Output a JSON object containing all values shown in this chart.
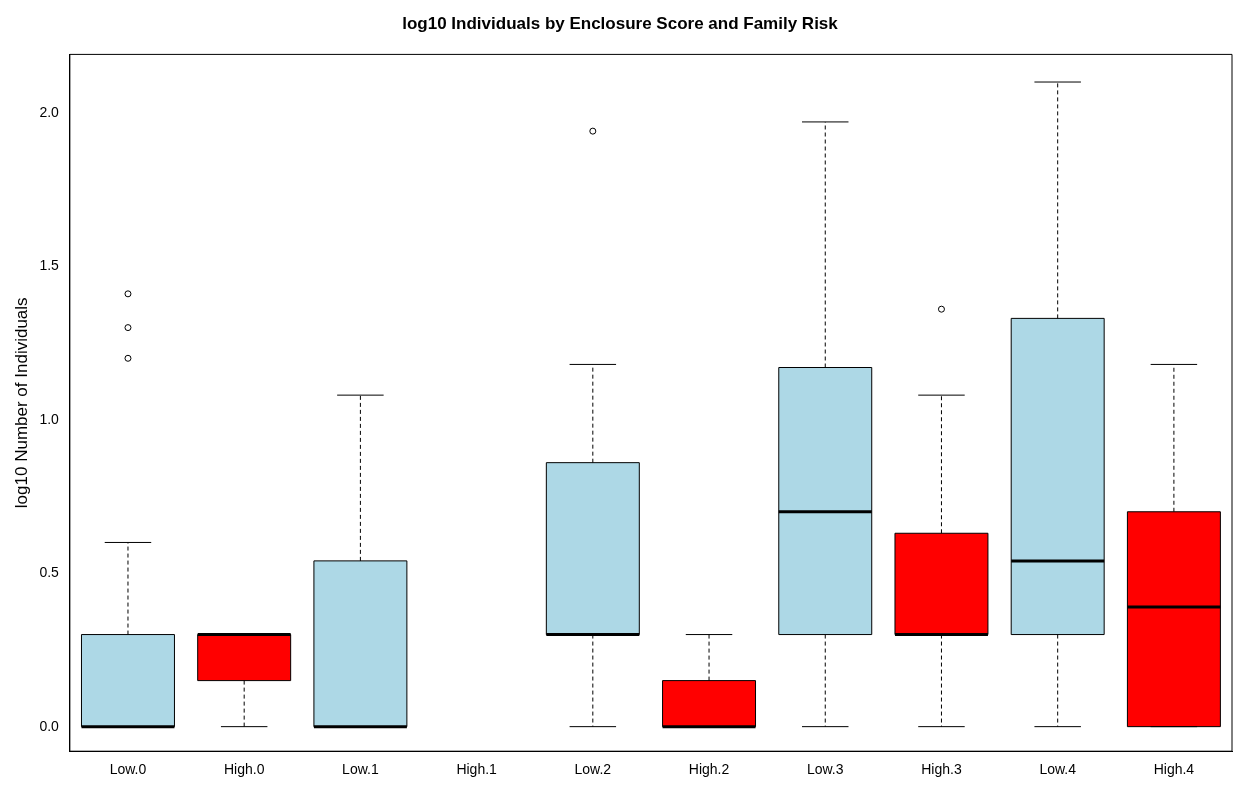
{
  "chart_data": {
    "type": "box",
    "title": "log10 Individuals by Enclosure Score and Family Risk",
    "ylabel": "log10 Number of Individuals",
    "categories": [
      "Low.0",
      "High.0",
      "Low.1",
      "High.1",
      "Low.2",
      "High.2",
      "Low.3",
      "High.3",
      "Low.4",
      "High.4"
    ],
    "colors": [
      "#add8e6",
      "#ff0000",
      "#add8e6",
      "#ff0000",
      "#add8e6",
      "#ff0000",
      "#add8e6",
      "#ff0000",
      "#add8e6",
      "#ff0000"
    ],
    "boxes": [
      {
        "low": 0,
        "q1": 0,
        "median": 0,
        "q3": 0.3,
        "high": 0.6,
        "outliers": [
          1.2,
          1.3,
          1.41
        ]
      },
      {
        "low": 0,
        "q1": 0.15,
        "median": 0.3,
        "q3": 0.3,
        "high": 0.3
      },
      {
        "low": 0,
        "q1": 0,
        "median": 0,
        "q3": 0.54,
        "high": 1.08
      },
      null,
      {
        "low": 0,
        "q1": 0.3,
        "median": 0.3,
        "q3": 0.86,
        "high": 1.18,
        "outliers": [
          1.94
        ]
      },
      {
        "low": 0,
        "q1": 0,
        "median": 0,
        "q3": 0.15,
        "high": 0.3
      },
      {
        "low": 0,
        "q1": 0.3,
        "median": 0.7,
        "q3": 1.17,
        "high": 1.97
      },
      {
        "low": 0,
        "q1": 0.3,
        "median": 0.3,
        "q3": 0.63,
        "high": 1.08,
        "outliers": [
          1.36
        ]
      },
      {
        "low": 0,
        "q1": 0.3,
        "median": 0.54,
        "q3": 1.33,
        "high": 2.1
      },
      {
        "low": 0,
        "q1": 0,
        "median": 0.39,
        "q3": 0.7,
        "high": 1.18
      }
    ],
    "ylim": [
      -0.08,
      2.19
    ],
    "yticks": [
      {
        "value": 0,
        "label": "0.0"
      },
      {
        "value": 0.5,
        "label": "0.5"
      },
      {
        "value": 1,
        "label": "1.0"
      },
      {
        "value": 1.5,
        "label": "1.5"
      },
      {
        "value": 2,
        "label": "2.0"
      }
    ],
    "grid": false,
    "legend": false
  }
}
